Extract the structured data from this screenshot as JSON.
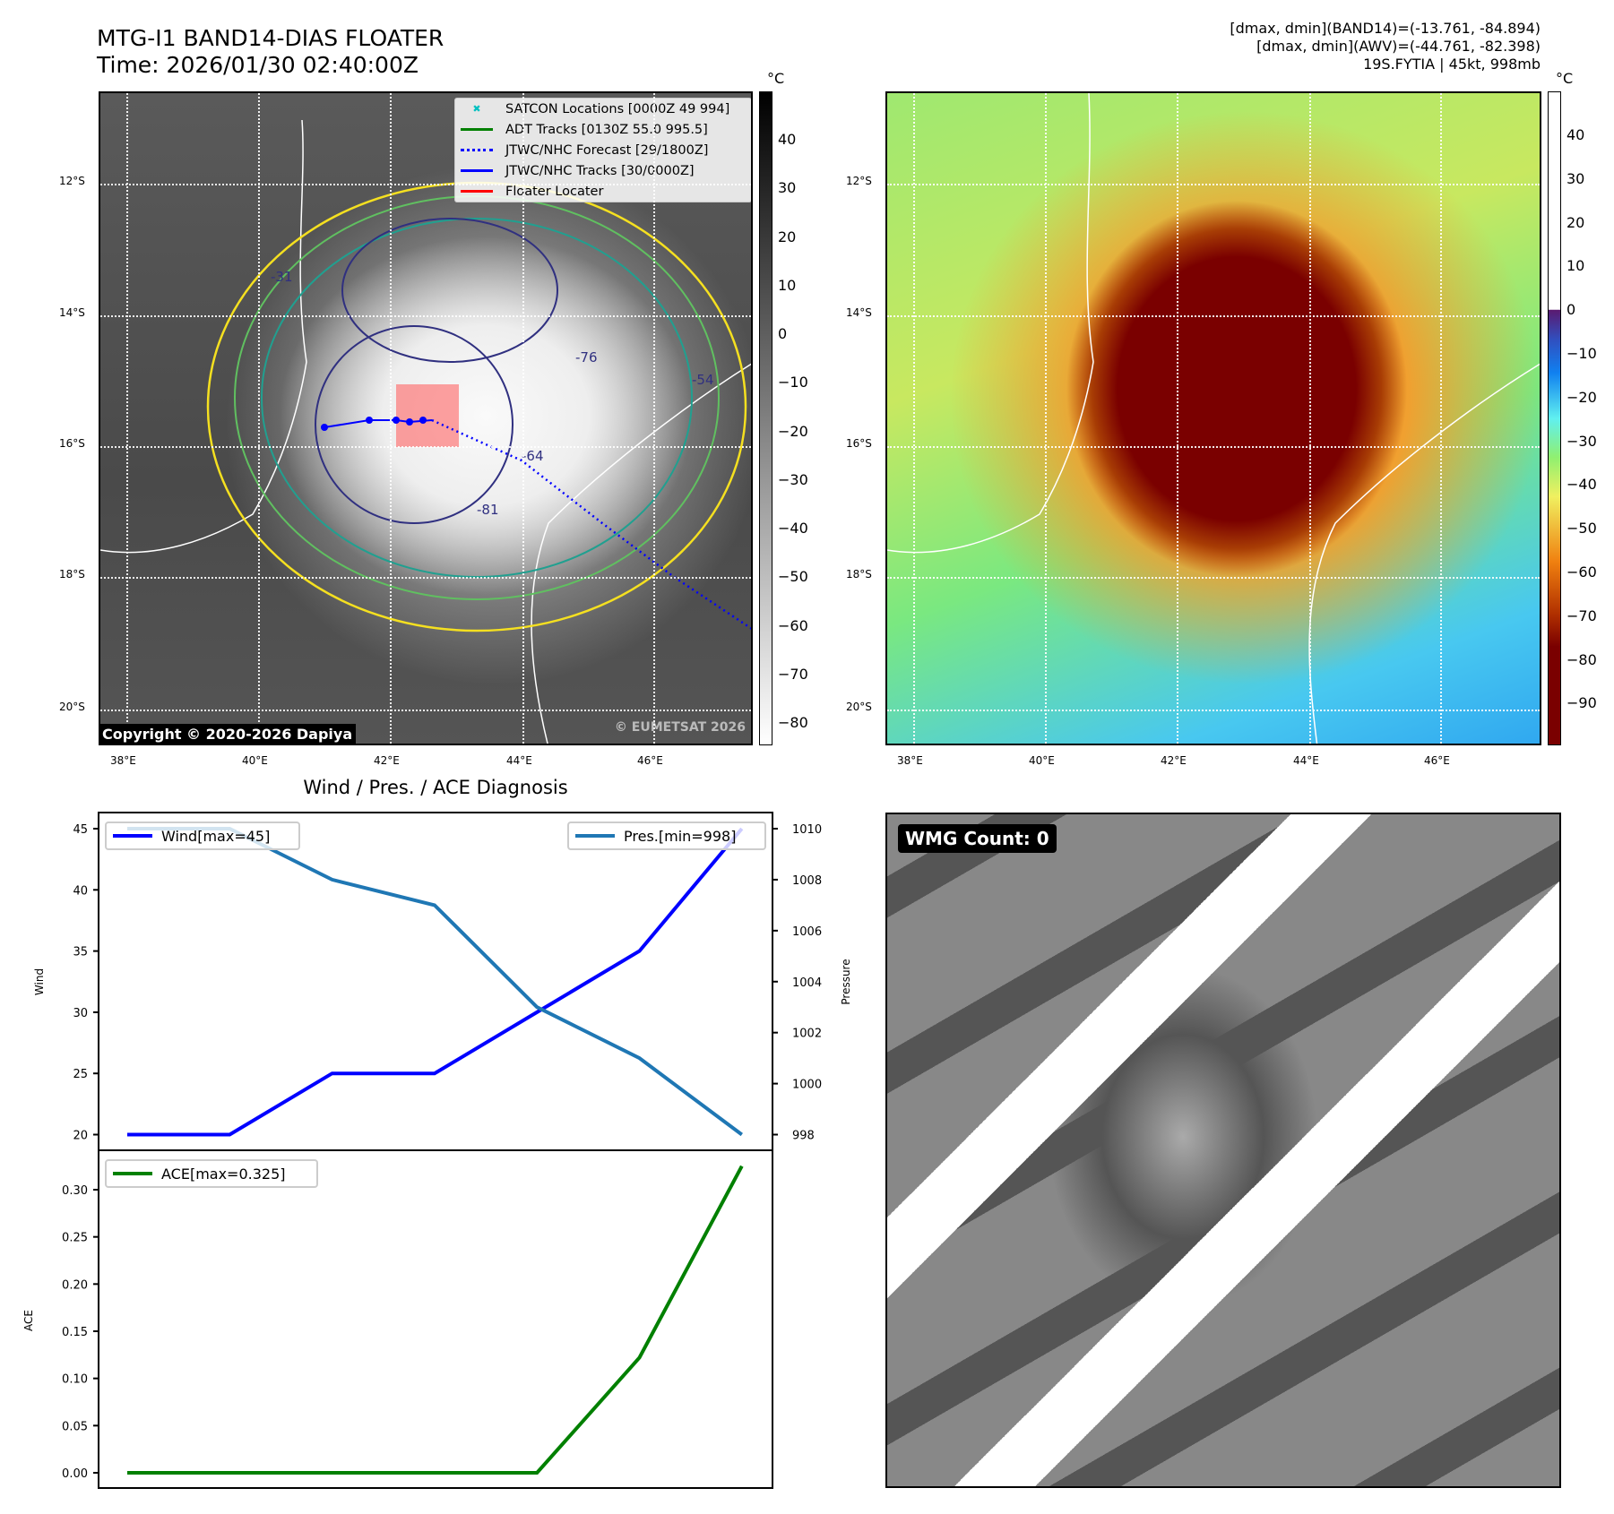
{
  "header": {
    "title": "MTG-I1 BAND14-DIAS FLOATER",
    "time": "Time: 2026/01/30 02:40:00Z",
    "stats_band14": "[dmax, dmin](BAND14)=(-13.761, -84.894)",
    "stats_awv": "[dmax, dmin](AWV)=(-44.761, -82.398)",
    "storm": "19S.FYTIA | 45kt, 998mb"
  },
  "maps": {
    "lat_labels": [
      "12°S",
      "14°S",
      "16°S",
      "18°S",
      "20°S"
    ],
    "lon_labels": [
      "38°E",
      "40°E",
      "42°E",
      "44°E",
      "46°E"
    ],
    "unit": "°C",
    "ir_colorbar_ticks": [
      "40",
      "30",
      "20",
      "10",
      "0",
      "−10",
      "−20",
      "−30",
      "−40",
      "−50",
      "−60",
      "−70",
      "−80"
    ],
    "awv_colorbar_ticks": [
      "40",
      "30",
      "20",
      "10",
      "0",
      "−10",
      "−20",
      "−30",
      "−40",
      "−50",
      "−60",
      "−70",
      "−80",
      "−90"
    ],
    "contour_labels": [
      "-31",
      "-54",
      "-64",
      "-76",
      "-81"
    ],
    "watermark": "© EUMETSAT 2026",
    "copyright": "Copyright © 2020-2026 Dapiya",
    "legend": [
      {
        "label": "SATCON Locations [0000Z 49 994]",
        "color": "#00c0c0",
        "style": "x"
      },
      {
        "label": "ADT Tracks [0130Z 55.0 995.5]",
        "color": "#008000",
        "style": "solid"
      },
      {
        "label": "JTWC/NHC Forecast [29/1800Z]",
        "color": "#0000ff",
        "style": "dotted"
      },
      {
        "label": "JTWC/NHC Tracks [30/0000Z]",
        "color": "#0000ff",
        "style": "marker"
      },
      {
        "label": "Floater Locater",
        "color": "#ff0000",
        "style": "solid"
      }
    ],
    "wmg_count": "WMG Count: 0"
  },
  "chart_data": [
    {
      "type": "line",
      "title": "Wind / Pres. / ACE Diagnosis",
      "x": [
        0,
        1,
        2,
        3,
        4,
        5,
        6
      ],
      "series": [
        {
          "name": "Wind[max=45]",
          "axis": "left",
          "color": "#0000ff",
          "values": [
            20,
            20,
            25,
            25,
            30,
            35,
            45
          ]
        },
        {
          "name": "Pres.[min=998]",
          "axis": "right",
          "color": "#1f77b4",
          "values": [
            1010,
            1010,
            1008,
            1007,
            1003,
            1001,
            998
          ]
        }
      ],
      "ylabel": "Wind",
      "ylabel_right": "Pressure",
      "ylim": [
        20,
        45
      ],
      "ylim_right": [
        998,
        1010
      ],
      "yticks": [
        "20",
        "25",
        "30",
        "35",
        "40",
        "45"
      ],
      "yticks_right": [
        "998",
        "1000",
        "1002",
        "1004",
        "1006",
        "1008",
        "1010"
      ],
      "legend": [
        "top-left",
        "top-right"
      ]
    },
    {
      "type": "line",
      "x": [
        0,
        1,
        2,
        3,
        4,
        5,
        6
      ],
      "series": [
        {
          "name": "ACE[max=0.325]",
          "color": "#008000",
          "values": [
            0,
            0,
            0,
            0,
            0,
            0.122,
            0.325
          ]
        }
      ],
      "ylabel": "ACE",
      "ylim": [
        0,
        0.3
      ],
      "yticks": [
        "0.00",
        "0.05",
        "0.10",
        "0.15",
        "0.20",
        "0.25",
        "0.30"
      ],
      "legend": "top-left"
    }
  ]
}
